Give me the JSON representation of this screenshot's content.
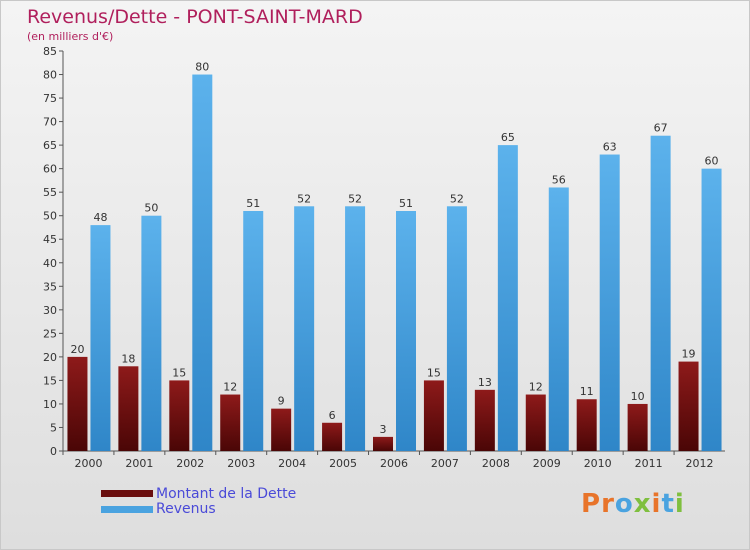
{
  "title": "Revenus/Dette - PONT-SAINT-MARD",
  "subtitle": "(en milliers d'€)",
  "colors": {
    "dette": "#7a1414",
    "revenus": "#4aa3e0",
    "title": "#b01f5c",
    "legend_text": "#4a4ad8"
  },
  "logo": {
    "text": "Proxiti",
    "letter_colors": [
      "#e8742a",
      "#e8742a",
      "#4aa3e0",
      "#7fbf3f",
      "#e8742a",
      "#4aa3e0",
      "#7fbf3f"
    ]
  },
  "chart_data": {
    "type": "bar",
    "title": "Revenus/Dette - PONT-SAINT-MARD",
    "subtitle": "(en milliers d'€)",
    "categories": [
      "2000",
      "2001",
      "2002",
      "2003",
      "2004",
      "2005",
      "2006",
      "2007",
      "2008",
      "2009",
      "2010",
      "2011",
      "2012"
    ],
    "series": [
      {
        "name": "Montant de la Dette",
        "values": [
          20,
          18,
          15,
          12,
          9,
          6,
          3,
          15,
          13,
          12,
          11,
          10,
          19
        ]
      },
      {
        "name": "Revenus",
        "values": [
          48,
          50,
          80,
          51,
          52,
          52,
          51,
          52,
          65,
          56,
          63,
          67,
          60
        ]
      }
    ],
    "ylim": [
      0,
      85
    ],
    "ytick_step": 5,
    "legend": "bottom-left",
    "grid": false
  }
}
